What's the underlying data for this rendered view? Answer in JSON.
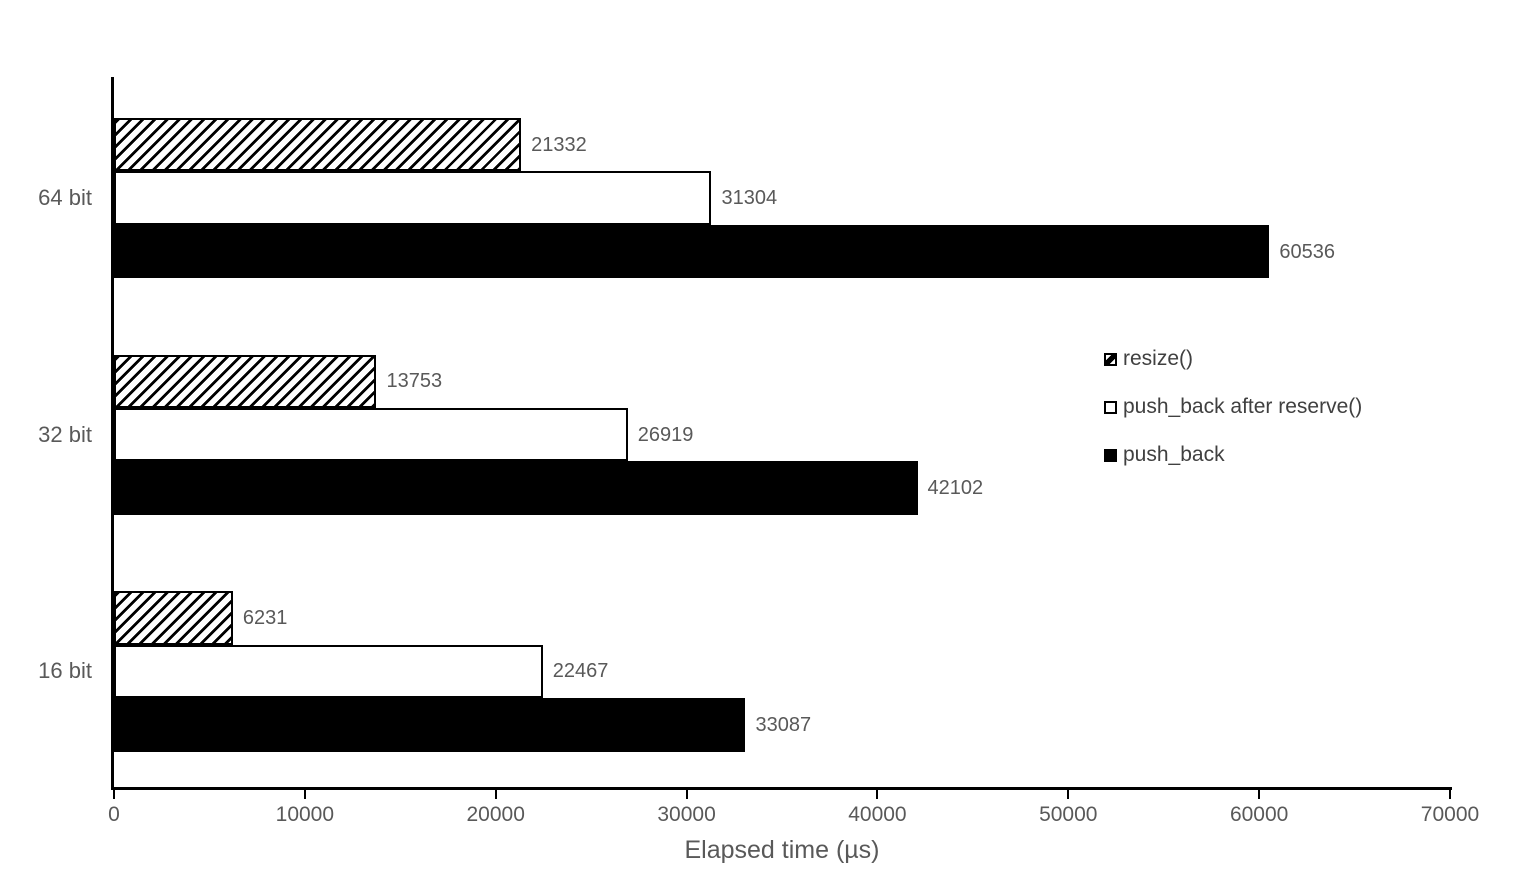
{
  "chart_data": {
    "type": "bar",
    "orientation": "horizontal",
    "title": "",
    "xlabel": "Elapsed time (µs)",
    "ylabel": "",
    "xlim": [
      0,
      70000
    ],
    "xticks": [
      0,
      10000,
      20000,
      30000,
      40000,
      50000,
      60000,
      70000
    ],
    "xtick_labels": [
      "0",
      "10000",
      "20000",
      "30000",
      "40000",
      "50000",
      "60000",
      "70000"
    ],
    "grid": false,
    "categories": [
      "64 bit",
      "32 bit",
      "16 bit"
    ],
    "series": [
      {
        "name": "resize()",
        "style": "hatch",
        "values": [
          21332,
          13753,
          6231
        ]
      },
      {
        "name": "push_back after reserve()",
        "style": "outline",
        "values": [
          31304,
          26919,
          22467
        ]
      },
      {
        "name": "push_back",
        "style": "solid",
        "values": [
          60536,
          42102,
          33087
        ]
      }
    ],
    "data_labels_shown": true,
    "legend": {
      "position": "middle-right",
      "items": [
        "resize()",
        "push_back after reserve()",
        "push_back"
      ]
    },
    "colors": {
      "bar_fill_solid": "#000000",
      "bar_fill_outline": "#ffffff",
      "bar_border": "#000000",
      "axis": "#000000",
      "tick_text": "#595959",
      "value_text": "#595959",
      "category_text": "#595959",
      "axis_title_text": "#595959",
      "legend_text": "#404040",
      "background": "#ffffff"
    }
  }
}
